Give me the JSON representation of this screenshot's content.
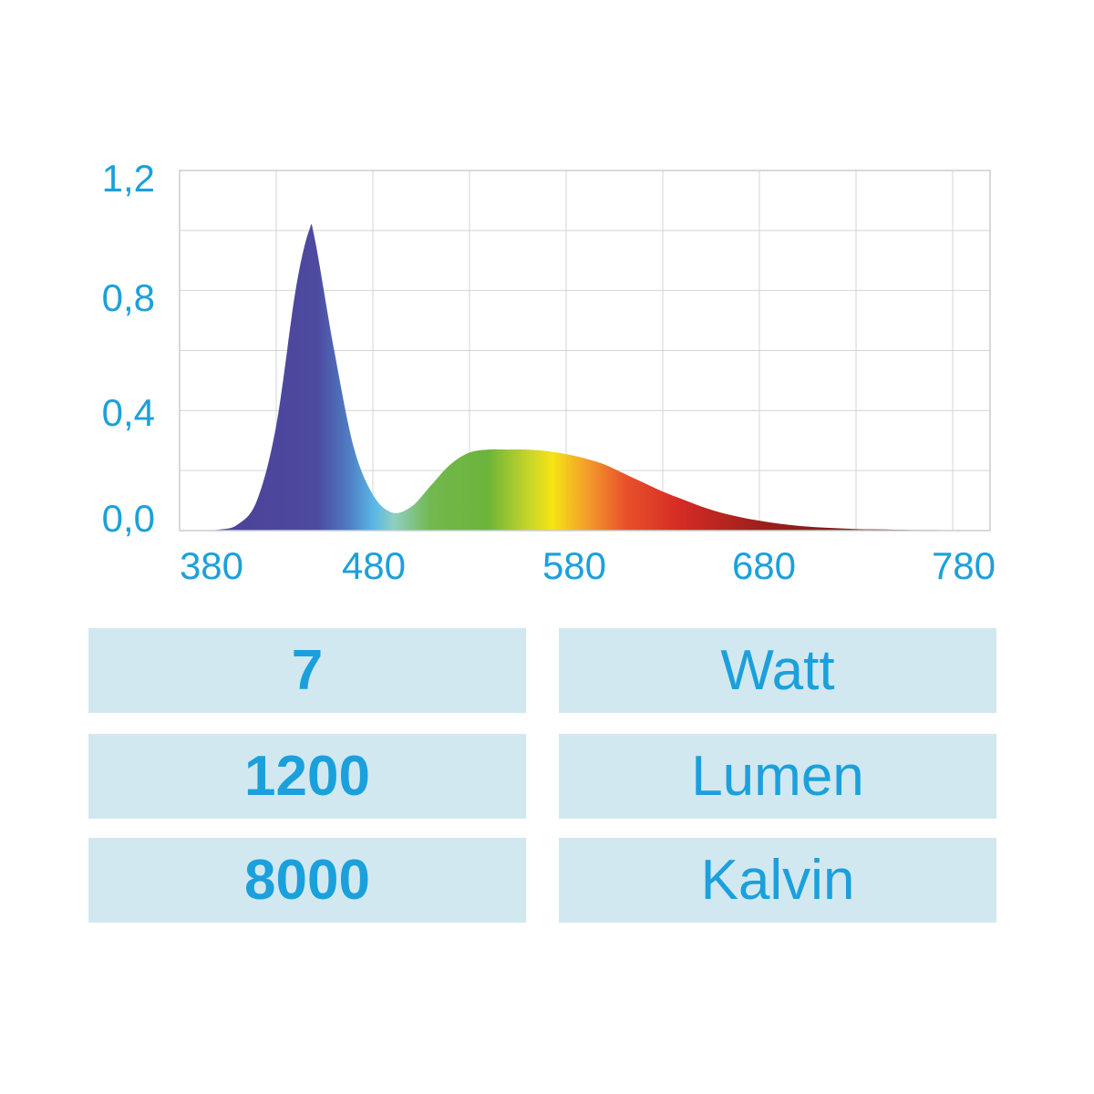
{
  "chart_data": {
    "type": "area",
    "title": "",
    "xlabel": "",
    "ylabel": "",
    "xlim": [
      380,
      800
    ],
    "ylim": [
      0,
      1.2
    ],
    "grid": true,
    "x_ticks": [
      "380",
      "480",
      "580",
      "680",
      "780"
    ],
    "y_ticks": [
      "0,0",
      "0,4",
      "0,8",
      "1,2"
    ],
    "fill": "visible spectrum colors by wavelength",
    "x": [
      380,
      390,
      400,
      410,
      420,
      430,
      440,
      447,
      450,
      460,
      470,
      480,
      490,
      500,
      510,
      520,
      530,
      540,
      550,
      560,
      570,
      580,
      590,
      600,
      610,
      620,
      630,
      640,
      650,
      660,
      670,
      680,
      690,
      700,
      710,
      720,
      730,
      740,
      750,
      760,
      770,
      780,
      790,
      800
    ],
    "y": [
      0,
      0,
      0.003,
      0.02,
      0.1,
      0.35,
      0.8,
      1.0,
      0.97,
      0.6,
      0.28,
      0.12,
      0.06,
      0.08,
      0.15,
      0.22,
      0.26,
      0.27,
      0.27,
      0.27,
      0.265,
      0.255,
      0.24,
      0.22,
      0.19,
      0.16,
      0.13,
      0.105,
      0.08,
      0.06,
      0.045,
      0.033,
      0.023,
      0.016,
      0.011,
      0.008,
      0.005,
      0.004,
      0.003,
      0.002,
      0.002,
      0.001,
      0.001,
      0
    ]
  },
  "specs": [
    {
      "value": "7",
      "unit": "Watt"
    },
    {
      "value": "1200",
      "unit": "Lumen"
    },
    {
      "value": "8000",
      "unit": "Kalvin"
    }
  ],
  "colors": {
    "text": "#1ba0dc",
    "cell_bg": "#d2e8f0",
    "grid": "#d0d4d8"
  }
}
